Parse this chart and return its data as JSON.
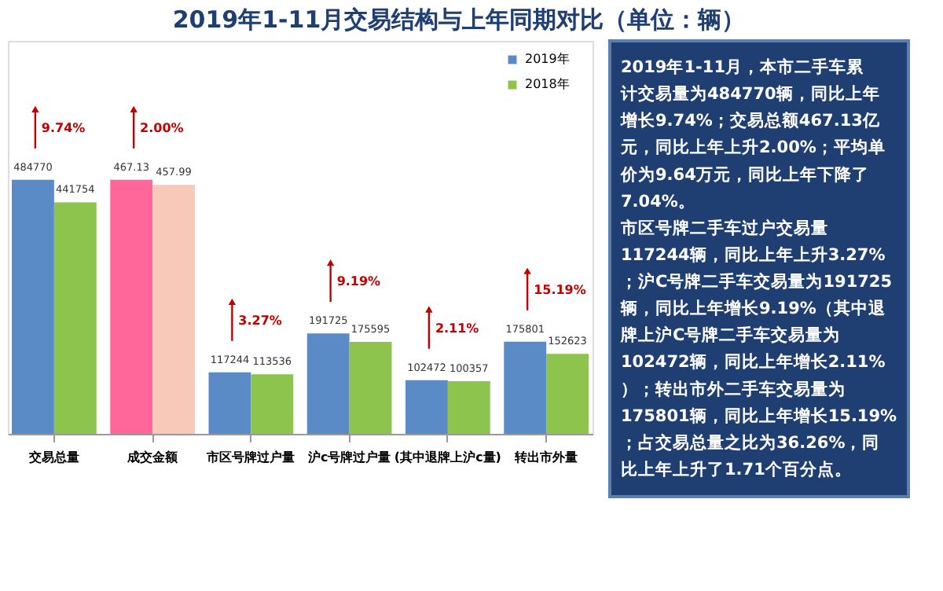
{
  "chart_data": {
    "type": "bar",
    "title": "2019年1-11月交易结构与上年同期对比（单位：辆）",
    "categories": [
      "交易总量",
      "成交金额",
      "市区号牌过户量",
      "沪c号牌过户量",
      "(其中退牌上沪c量)",
      "转出市外量"
    ],
    "series": [
      {
        "name": "2019年",
        "color": "#5b8bc6",
        "values": [
          484770,
          null,
          117244,
          191725,
          102472,
          175801
        ]
      },
      {
        "name": "2018年",
        "color": "#8dc44e",
        "values": [
          441754,
          null,
          113536,
          175595,
          100357,
          152623
        ]
      },
      {
        "color": "#ff6699",
        "axis": "y2",
        "values": [
          null,
          467.13,
          null,
          null,
          null,
          null
        ]
      },
      {
        "color": "#f8c8b8",
        "axis": "y2",
        "values": [
          null,
          457.99,
          null,
          null,
          null,
          null
        ]
      }
    ],
    "ylim": [
      0,
      750000
    ],
    "tick_labels": "x",
    "data_labels": true,
    "legend": "top right",
    "annotations": [
      "9.74%",
      "2.00%",
      "3.27%",
      "9.19%",
      "2.11%",
      "15.19%",
      "2019年1-11月，本市二手车累计交易量为484770辆，同比上年增长9.74%；交易总额467.13亿元，同比上年上升2.00%；平均单价为9.64万元，同比上年下降了7.04%。",
      "市区号牌二手车过户交易量117244辆，同比上年上升3.27%；沪C号牌二手车交易量为191725辆，同比上年增长9.19%（其中退牌上沪C号牌二手车交易量为102472辆，同比上年增长2.11%）；转出市外二手车交易量为175801辆，同比上年增长15.19%；占交易总量之比为36.26%，同比上年上升了1.71个百分点。"
    ]
  }
}
